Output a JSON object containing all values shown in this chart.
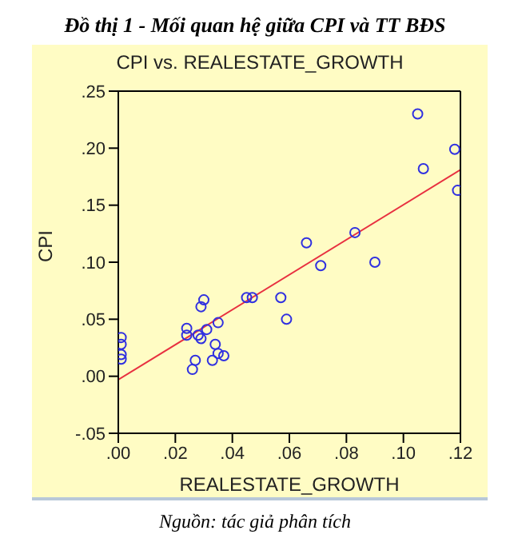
{
  "chart_data": {
    "type": "scatter",
    "title": "Đồ thị 1 - Mối quan hệ giữa CPI và TT BĐS",
    "subtitle": "CPI vs. REALESTATE_GROWTH",
    "xlabel": "REALESTATE_GROWTH",
    "ylabel": "CPI",
    "annotations": [
      "Nguồn: tác giả phân tích"
    ],
    "series": [
      {
        "color": "#3030e0",
        "marker": "circle",
        "x": [
          0.001,
          0.001,
          0.001,
          0.001,
          0.024,
          0.024,
          0.026,
          0.027,
          0.028,
          0.029,
          0.029,
          0.03,
          0.031,
          0.033,
          0.034,
          0.035,
          0.035,
          0.037,
          0.045,
          0.047,
          0.057,
          0.059,
          0.066,
          0.071,
          0.083,
          0.09,
          0.105,
          0.107,
          0.118,
          0.119
        ],
        "values": [
          0.034,
          0.028,
          0.019,
          0.015,
          0.042,
          0.036,
          0.006,
          0.014,
          0.036,
          0.033,
          0.061,
          0.067,
          0.041,
          0.014,
          0.028,
          0.047,
          0.02,
          0.018,
          0.069,
          0.069,
          0.069,
          0.05,
          0.117,
          0.097,
          0.126,
          0.1,
          0.23,
          0.182,
          0.199,
          0.163
        ]
      },
      {
        "type": "line",
        "color": "#e83040",
        "marker": "none",
        "x": [
          0,
          0.12
        ],
        "values": [
          -0.003,
          0.181
        ]
      }
    ],
    "xlim": [
      0,
      0.12
    ],
    "ylim": [
      -0.05,
      0.25
    ],
    "xticks": [
      {
        "value": 0,
        "label": ".00"
      },
      {
        "value": 0.02,
        "label": ".02"
      },
      {
        "value": 0.04,
        "label": ".04"
      },
      {
        "value": 0.06,
        "label": ".06"
      },
      {
        "value": 0.08,
        "label": ".08"
      },
      {
        "value": 0.1,
        "label": ".10"
      },
      {
        "value": 0.12,
        "label": ".12"
      }
    ],
    "yticks": [
      {
        "value": -0.05,
        "label": "-.05"
      },
      {
        "value": 0,
        "label": ".00"
      },
      {
        "value": 0.05,
        "label": ".05"
      },
      {
        "value": 0.1,
        "label": ".10"
      },
      {
        "value": 0.15,
        "label": ".15"
      },
      {
        "value": 0.2,
        "label": ".20"
      },
      {
        "value": 0.25,
        "label": ".25"
      }
    ],
    "grid": false,
    "legend": false
  }
}
